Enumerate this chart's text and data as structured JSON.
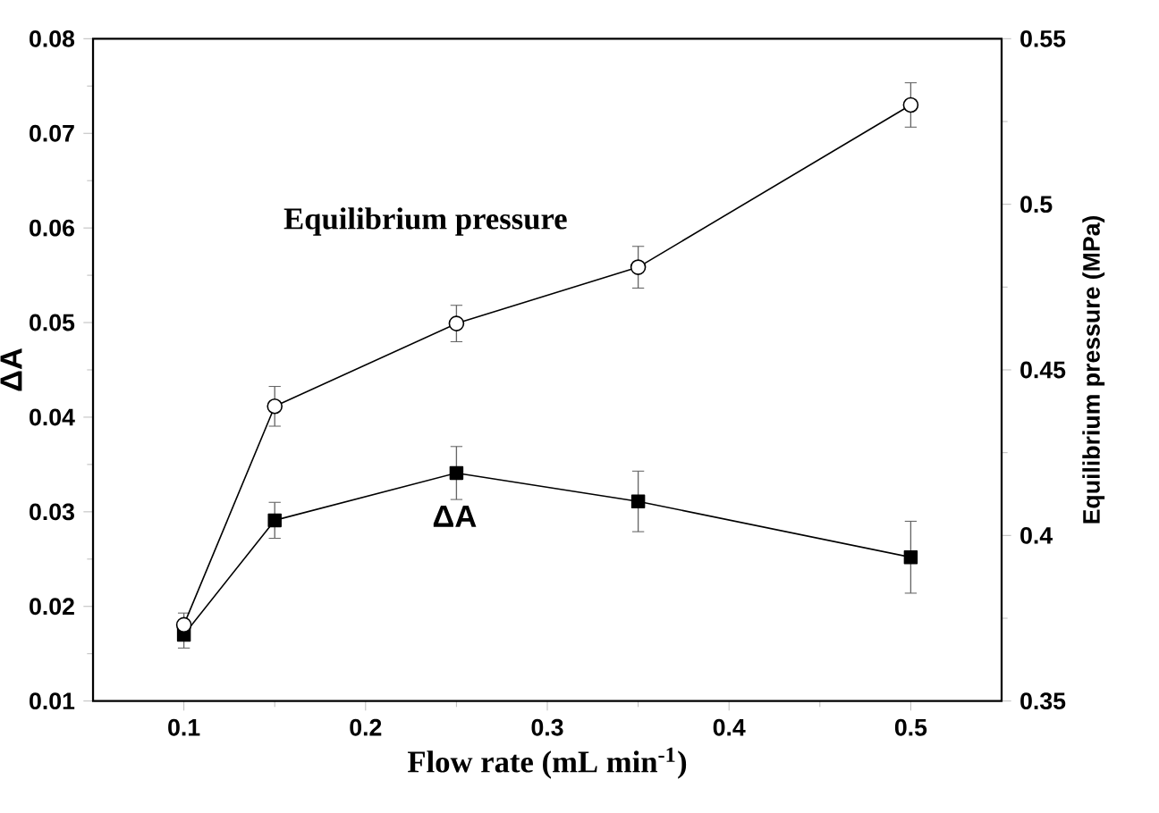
{
  "chart_data": {
    "type": "line",
    "xlabel": "Flow rate (mL min$^{-1}$)",
    "ylabel": "ΔA",
    "y2label": "Equilibrium pressure (MPa)",
    "x": [
      0.1,
      0.15,
      0.25,
      0.35,
      0.5
    ],
    "series": [
      {
        "name": "Equilibrium pressure",
        "color": "#000000",
        "axis": "y2",
        "marker": "circle",
        "values": [
          0.373,
          0.439,
          0.464,
          0.481,
          0.53
        ],
        "errors": [
          null,
          0.006,
          0.0055,
          0.0063,
          0.0067
        ]
      },
      {
        "name": "ΔA",
        "color": "#000000",
        "axis": "y",
        "marker": "square",
        "values": [
          0.017,
          0.0291,
          0.0341,
          0.0311,
          0.0252
        ],
        "errors": [
          [
            0.0156,
            0.0193
          ],
          0.0019,
          0.0028,
          0.0032,
          0.0038
        ]
      }
    ],
    "line_style": "solid",
    "xlim": [
      0.05,
      0.55
    ],
    "xticks": [
      0.1,
      0.2,
      0.3,
      0.4,
      0.5
    ],
    "ylim": [
      0.01,
      0.08
    ],
    "yticks": [
      0.01,
      0.02,
      0.03,
      0.04,
      0.05,
      0.06,
      0.07,
      0.08
    ],
    "y2lim": [
      0.35,
      0.55
    ],
    "y2ticks": [
      0.35,
      0.4,
      0.45,
      0.5,
      0.55
    ]
  }
}
